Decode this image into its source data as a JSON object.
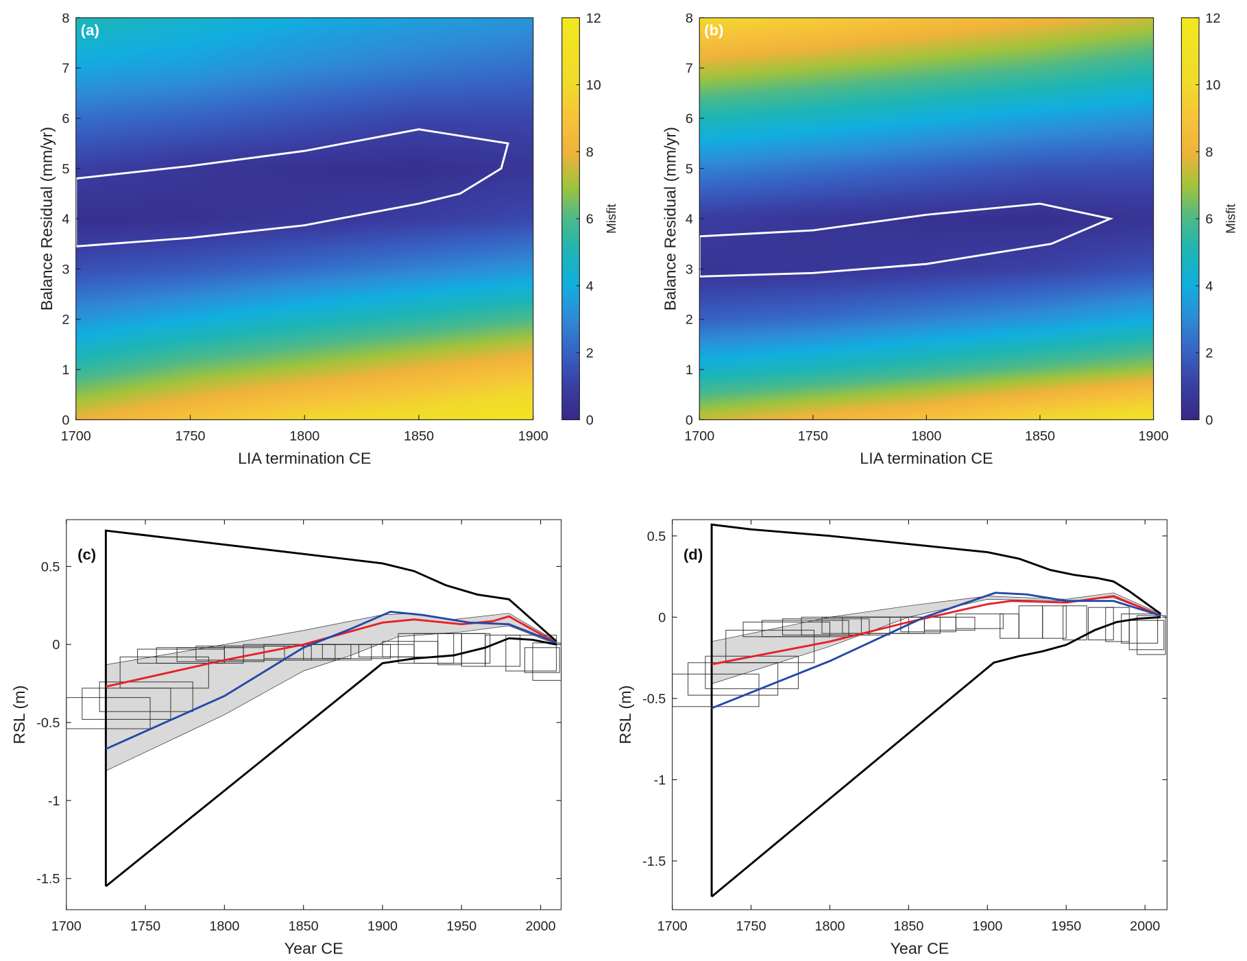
{
  "colors": {
    "red": "#e8202a",
    "blue": "#2448a8",
    "band": "#d9d9d9",
    "contour": "#ffffff"
  },
  "colormap": [
    [
      0,
      "#352a87"
    ],
    [
      1,
      "#3a3fa3"
    ],
    [
      2,
      "#3762c4"
    ],
    [
      3,
      "#2f8bd6"
    ],
    [
      4,
      "#12aee0"
    ],
    [
      5,
      "#1db5b6"
    ],
    [
      6,
      "#4db98a"
    ],
    [
      7,
      "#a2c33c"
    ],
    [
      8,
      "#f0b33a"
    ],
    [
      9,
      "#f6c33a"
    ],
    [
      10,
      "#f1da2c"
    ],
    [
      12,
      "#f2e81e"
    ]
  ],
  "chart_data": [
    {
      "panel": "(a)",
      "type": "heatmap",
      "xlabel": "LIA termination CE",
      "ylabel": "Balance Residual (mm/yr)",
      "xlim": [
        1700,
        1900
      ],
      "ylim": [
        0,
        8
      ],
      "xticks": [
        1700,
        1750,
        1800,
        1850,
        1900
      ],
      "yticks": [
        0,
        1,
        2,
        3,
        4,
        5,
        6,
        7,
        8
      ],
      "colorbar": {
        "label": "Misfit",
        "range": [
          0,
          12
        ],
        "ticks": [
          0,
          2,
          4,
          6,
          8,
          10,
          12
        ]
      },
      "grid_x": [
        1700,
        1750,
        1800,
        1850,
        1900
      ],
      "grid_y": [
        0,
        1,
        2,
        3,
        4,
        5,
        6,
        7,
        8
      ],
      "z": [
        [
          8,
          9,
          10,
          10.5,
          11.5
        ],
        [
          5.5,
          6.5,
          7.2,
          8,
          8.8
        ],
        [
          3.3,
          4,
          4.7,
          5.3,
          6
        ],
        [
          1.5,
          1.8,
          2.3,
          2.8,
          3.3
        ],
        [
          0.3,
          0.4,
          0.6,
          0.9,
          1.3
        ],
        [
          1.0,
          0.6,
          0.4,
          0.3,
          0.6
        ],
        [
          2.3,
          2,
          1.6,
          1.2,
          1.2
        ],
        [
          3.8,
          3.5,
          3.0,
          2.6,
          2.3
        ],
        [
          5,
          4.5,
          4,
          3.6,
          3.3
        ]
      ],
      "contour": [
        [
          1700,
          4.8
        ],
        [
          1750,
          5.05
        ],
        [
          1800,
          5.35
        ],
        [
          1850,
          5.78
        ],
        [
          1889,
          5.5
        ],
        [
          1886,
          5.0
        ],
        [
          1868,
          4.5
        ],
        [
          1850,
          4.3
        ],
        [
          1800,
          3.87
        ],
        [
          1750,
          3.62
        ],
        [
          1700,
          3.45
        ]
      ]
    },
    {
      "panel": "(b)",
      "type": "heatmap",
      "xlabel": "LIA termination CE",
      "ylabel": "Balance Residual (mm/yr)",
      "xlim": [
        1700,
        1900
      ],
      "ylim": [
        0,
        8
      ],
      "xticks": [
        1700,
        1750,
        1800,
        1850,
        1900
      ],
      "yticks": [
        0,
        1,
        2,
        3,
        4,
        5,
        6,
        7,
        8
      ],
      "colorbar": {
        "label": "Misfit",
        "range": [
          0,
          12
        ],
        "ticks": [
          0,
          2,
          4,
          6,
          8,
          10,
          12
        ]
      },
      "grid_x": [
        1700,
        1750,
        1800,
        1850,
        1900
      ],
      "grid_y": [
        0,
        1,
        2,
        3,
        4,
        5,
        6,
        7,
        8
      ],
      "z": [
        [
          7.5,
          8.3,
          9,
          10,
          11
        ],
        [
          4.5,
          5,
          5.6,
          6.3,
          7
        ],
        [
          2,
          2.3,
          2.8,
          3.3,
          4
        ],
        [
          0.5,
          0.6,
          0.8,
          1.1,
          1.6
        ],
        [
          0.9,
          0.6,
          0.4,
          0.3,
          0.5
        ],
        [
          2.8,
          2.4,
          2,
          1.6,
          1.5
        ],
        [
          5,
          4.6,
          4.1,
          3.6,
          3.2
        ],
        [
          7.5,
          7,
          6.5,
          6,
          5.3
        ],
        [
          10,
          9.5,
          8.8,
          8.2,
          7.5
        ]
      ],
      "contour": [
        [
          1700,
          3.65
        ],
        [
          1750,
          3.77
        ],
        [
          1800,
          4.08
        ],
        [
          1850,
          4.3
        ],
        [
          1881,
          4.0
        ],
        [
          1855,
          3.5
        ],
        [
          1800,
          3.1
        ],
        [
          1750,
          2.92
        ],
        [
          1700,
          2.85
        ]
      ]
    },
    {
      "panel": "(c)",
      "type": "line",
      "xlabel": "Year CE",
      "ylabel": "RSL (m)",
      "xlim": [
        1700,
        2013
      ],
      "ylim": [
        -1.7,
        0.8
      ],
      "xticks": [
        1700,
        1750,
        1800,
        1850,
        1900,
        1950,
        2000
      ],
      "yticks": [
        -1.5,
        -1,
        -0.5,
        0,
        0.5
      ],
      "ytick_labels": [
        "-1.5",
        "-1",
        "-0.5",
        "0",
        "0.5"
      ],
      "band_upper": [
        [
          1725,
          -0.13
        ],
        [
          1800,
          0.0
        ],
        [
          1850,
          0.09
        ],
        [
          1900,
          0.19
        ],
        [
          1920,
          0.2
        ],
        [
          1945,
          0.16
        ],
        [
          1980,
          0.2
        ],
        [
          2010,
          0.02
        ]
      ],
      "band_lower": [
        [
          1725,
          -0.81
        ],
        [
          1800,
          -0.45
        ],
        [
          1850,
          -0.17
        ],
        [
          1880,
          -0.07
        ],
        [
          1910,
          0.05
        ],
        [
          1950,
          0.08
        ],
        [
          1980,
          0.12
        ],
        [
          2010,
          0.0
        ]
      ],
      "envelope_upper": [
        [
          1725,
          -1.55
        ],
        [
          1725,
          0.73
        ],
        [
          1750,
          0.7
        ],
        [
          1800,
          0.64
        ],
        [
          1850,
          0.58
        ],
        [
          1900,
          0.52
        ],
        [
          1920,
          0.47
        ],
        [
          1940,
          0.38
        ],
        [
          1960,
          0.32
        ],
        [
          1980,
          0.29
        ],
        [
          1990,
          0.2
        ],
        [
          2010,
          0.02
        ]
      ],
      "envelope_lower": [
        [
          1725,
          -1.55
        ],
        [
          1900,
          -0.12
        ],
        [
          1920,
          -0.09
        ],
        [
          1945,
          -0.07
        ],
        [
          1965,
          -0.02
        ],
        [
          1980,
          0.04
        ],
        [
          1995,
          0.03
        ],
        [
          2010,
          0.0
        ]
      ],
      "red": [
        [
          1725,
          -0.27
        ],
        [
          1800,
          -0.1
        ],
        [
          1850,
          0.0
        ],
        [
          1900,
          0.14
        ],
        [
          1920,
          0.16
        ],
        [
          1950,
          0.13
        ],
        [
          1970,
          0.15
        ],
        [
          1980,
          0.18
        ],
        [
          2010,
          0.01
        ]
      ],
      "blue": [
        [
          1725,
          -0.67
        ],
        [
          1800,
          -0.33
        ],
        [
          1850,
          -0.02
        ],
        [
          1880,
          0.1
        ],
        [
          1905,
          0.21
        ],
        [
          1925,
          0.19
        ],
        [
          1955,
          0.14
        ],
        [
          1980,
          0.13
        ],
        [
          2010,
          0.01
        ]
      ],
      "boxes": [
        [
          1700,
          1753,
          -0.54,
          -0.34
        ],
        [
          1710,
          1766,
          -0.48,
          -0.28
        ],
        [
          1721,
          1780,
          -0.43,
          -0.24
        ],
        [
          1734,
          1790,
          -0.28,
          -0.08
        ],
        [
          1745,
          1800,
          -0.12,
          -0.03
        ],
        [
          1757,
          1812,
          -0.12,
          -0.02
        ],
        [
          1770,
          1825,
          -0.11,
          -0.02
        ],
        [
          1782,
          1838,
          -0.1,
          -0.01
        ],
        [
          1800,
          1855,
          -0.1,
          -0.01
        ],
        [
          1812,
          1870,
          -0.1,
          0.0
        ],
        [
          1825,
          1880,
          -0.09,
          0.0
        ],
        [
          1850,
          1893,
          -0.1,
          0.0
        ],
        [
          1862,
          1905,
          -0.09,
          0.0
        ],
        [
          1885,
          1920,
          -0.08,
          0.0
        ],
        [
          1900,
          1935,
          -0.08,
          0.02
        ],
        [
          1910,
          1945,
          -0.12,
          0.07
        ],
        [
          1920,
          1968,
          -0.12,
          0.07
        ],
        [
          1935,
          1950,
          -0.13,
          0.07
        ],
        [
          1950,
          1965,
          -0.14,
          0.07
        ],
        [
          1965,
          1987,
          -0.14,
          0.06
        ],
        [
          1978,
          2010,
          -0.17,
          0.06
        ],
        [
          1990,
          2012,
          -0.18,
          -0.02
        ],
        [
          1995,
          2013,
          -0.23,
          0.01
        ]
      ]
    },
    {
      "panel": "(d)",
      "type": "line",
      "xlabel": "Year CE",
      "ylabel": "RSL (m)",
      "xlim": [
        1700,
        2014
      ],
      "ylim": [
        -1.8,
        0.6
      ],
      "xticks": [
        1700,
        1750,
        1800,
        1850,
        1900,
        1950,
        2000
      ],
      "yticks": [
        -1.5,
        -1,
        -0.5,
        0,
        0.5
      ],
      "ytick_labels": [
        "-1.5",
        "-1",
        "-0.5",
        "0",
        "0.5"
      ],
      "band_upper": [
        [
          1725,
          -0.15
        ],
        [
          1800,
          0.0
        ],
        [
          1850,
          0.07
        ],
        [
          1900,
          0.13
        ],
        [
          1950,
          0.11
        ],
        [
          1980,
          0.15
        ],
        [
          2010,
          0.02
        ]
      ],
      "band_lower": [
        [
          1725,
          -0.41
        ],
        [
          1800,
          -0.18
        ],
        [
          1850,
          0.0
        ],
        [
          1900,
          0.11
        ],
        [
          1950,
          0.1
        ],
        [
          1980,
          0.12
        ],
        [
          2010,
          0.01
        ]
      ],
      "envelope_upper": [
        [
          1725,
          -1.72
        ],
        [
          1725,
          0.57
        ],
        [
          1750,
          0.54
        ],
        [
          1800,
          0.5
        ],
        [
          1850,
          0.45
        ],
        [
          1900,
          0.4
        ],
        [
          1920,
          0.36
        ],
        [
          1940,
          0.29
        ],
        [
          1955,
          0.26
        ],
        [
          1970,
          0.24
        ],
        [
          1980,
          0.22
        ],
        [
          1990,
          0.16
        ],
        [
          2010,
          0.02
        ]
      ],
      "envelope_lower": [
        [
          1725,
          -1.72
        ],
        [
          1904,
          -0.28
        ],
        [
          1920,
          -0.24
        ],
        [
          1935,
          -0.21
        ],
        [
          1950,
          -0.17
        ],
        [
          1968,
          -0.08
        ],
        [
          1982,
          -0.03
        ],
        [
          1995,
          -0.01
        ],
        [
          2010,
          0.0
        ]
      ],
      "red": [
        [
          1725,
          -0.29
        ],
        [
          1800,
          -0.15
        ],
        [
          1850,
          -0.03
        ],
        [
          1900,
          0.08
        ],
        [
          1915,
          0.1
        ],
        [
          1950,
          0.09
        ],
        [
          1980,
          0.13
        ],
        [
          2010,
          0.01
        ]
      ],
      "blue": [
        [
          1725,
          -0.56
        ],
        [
          1800,
          -0.27
        ],
        [
          1860,
          0.0
        ],
        [
          1905,
          0.15
        ],
        [
          1925,
          0.14
        ],
        [
          1950,
          0.1
        ],
        [
          1980,
          0.1
        ],
        [
          2010,
          0.01
        ]
      ],
      "boxes": [
        [
          1700,
          1755,
          -0.55,
          -0.35
        ],
        [
          1710,
          1767,
          -0.48,
          -0.28
        ],
        [
          1721,
          1780,
          -0.44,
          -0.24
        ],
        [
          1734,
          1790,
          -0.28,
          -0.08
        ],
        [
          1745,
          1800,
          -0.12,
          -0.03
        ],
        [
          1757,
          1812,
          -0.12,
          -0.02
        ],
        [
          1770,
          1825,
          -0.11,
          -0.01
        ],
        [
          1782,
          1838,
          -0.11,
          0.0
        ],
        [
          1795,
          1850,
          -0.1,
          0.0
        ],
        [
          1808,
          1860,
          -0.1,
          0.0
        ],
        [
          1820,
          1870,
          -0.1,
          0.0
        ],
        [
          1845,
          1880,
          -0.09,
          0.0
        ],
        [
          1860,
          1892,
          -0.08,
          0.0
        ],
        [
          1880,
          1910,
          -0.07,
          0.02
        ],
        [
          1908,
          1920,
          -0.13,
          0.02
        ],
        [
          1920,
          1935,
          -0.13,
          0.07
        ],
        [
          1935,
          1950,
          -0.13,
          0.07
        ],
        [
          1948,
          1963,
          -0.14,
          0.07
        ],
        [
          1964,
          1980,
          -0.14,
          0.06
        ],
        [
          1975,
          1990,
          -0.15,
          0.06
        ],
        [
          1985,
          2008,
          -0.16,
          0.02
        ],
        [
          1990,
          2012,
          -0.2,
          -0.02
        ],
        [
          1995,
          2013,
          -0.23,
          0.01
        ]
      ]
    }
  ]
}
